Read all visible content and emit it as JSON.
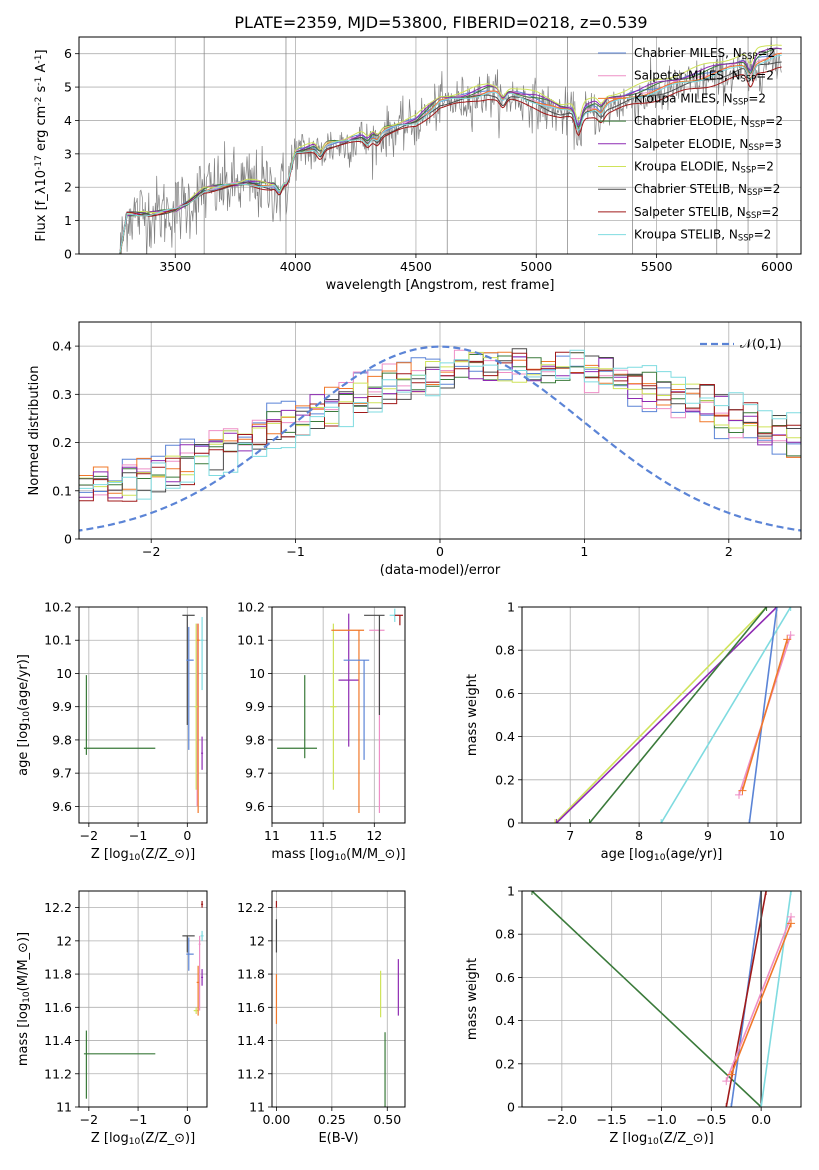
{
  "figure": {
    "title": "PLATE=2359, MJD=53800, FIBERID=0218, z=0.539"
  },
  "palette": {
    "Chabrier MILES": "#5b84d6",
    "Salpeter MILES": "#ee8fc6",
    "Kroupa MILES": "#f0782a",
    "Chabrier ELODIE": "#3a7a3a",
    "Salpeter ELODIE": "#8e2bb3",
    "Kroupa ELODIE": "#cfe35a",
    "Chabrier STELIB": "#4a4a4a",
    "Salpeter STELIB": "#a01a1a",
    "Kroupa STELIB": "#7fdbe0",
    "data": "#808080",
    "normal": "#5b84d6"
  },
  "chart_data": [
    {
      "id": "spectrum",
      "type": "line",
      "title": "PLATE=2359, MJD=53800, FIBERID=0218, z=0.539",
      "xlabel": "wavelength [Angstrom, rest frame]",
      "ylabel": "Flux [f$_\\lambda$10$^{-17}$ erg cm$^{-2}$ s$^{-1}$ A$^{-1}$]",
      "xlim": [
        3100,
        6100
      ],
      "ylim": [
        0,
        6.5
      ],
      "xticks": [
        3500,
        4000,
        4500,
        5000,
        5500,
        6000
      ],
      "yticks": [
        0,
        1,
        2,
        3,
        4,
        5,
        6
      ],
      "legend_position": "top-right",
      "legend": [
        "Chabrier MILES, N$_{SSP}$=2",
        "Salpeter MILES, N$_{SSP}$=2",
        "Kroupa MILES, N$_{SSP}$=2",
        "Chabrier ELODIE, N$_{SSP}$=2",
        "Salpeter ELODIE, N$_{SSP}$=3",
        "Kroupa ELODIE, N$_{SSP}$=2",
        "Chabrier STELIB, N$_{SSP}$=2",
        "Salpeter STELIB, N$_{SSP}$=2",
        "Kroupa STELIB, N$_{SSP}$=2"
      ],
      "continuum": {
        "x": [
          3270,
          3300,
          3400,
          3500,
          3550,
          3620,
          3700,
          3800,
          3900,
          3960,
          4000,
          4100,
          4200,
          4300,
          4400,
          4500,
          4600,
          4700,
          4800,
          4900,
          5000,
          5100,
          5200,
          5300,
          5400,
          5500,
          5600,
          5700,
          5800,
          5900,
          6000
        ],
        "y": [
          0,
          1.2,
          1.2,
          1.3,
          1.5,
          1.9,
          2.0,
          2.1,
          2.0,
          2.3,
          3.0,
          3.2,
          3.3,
          3.5,
          3.7,
          3.9,
          4.5,
          4.6,
          4.8,
          4.7,
          4.5,
          4.2,
          4.2,
          4.4,
          4.6,
          4.8,
          5.0,
          5.2,
          5.4,
          5.6,
          5.8
        ]
      },
      "model_offsets": {
        "Chabrier MILES": 0.25,
        "Salpeter MILES": 0.2,
        "Kroupa MILES": 0.15,
        "Chabrier ELODIE": 0.3,
        "Salpeter ELODIE": 0.35,
        "Kroupa ELODIE": 0.5,
        "Chabrier STELIB": 0.0,
        "Salpeter STELIB": -0.2,
        "Kroupa STELIB": 0.1
      }
    },
    {
      "id": "residuals",
      "type": "line",
      "xlabel": "(data-model)/error",
      "ylabel": "Normed distribution",
      "xlim": [
        -2.5,
        2.5
      ],
      "ylim": [
        0,
        0.45
      ],
      "xticks": [
        -2,
        -1,
        0,
        1,
        2
      ],
      "yticks": [
        0.0,
        0.1,
        0.2,
        0.3,
        0.4
      ],
      "legend": [
        "$\\mathcal{N}(0,1)$"
      ],
      "legend_position": "top-right",
      "normal_mean": 0,
      "normal_sigma": 1,
      "hist_center": 0.55,
      "hist_width": 1.7,
      "hist_peak": 0.33
    },
    {
      "id": "age-vs-Z",
      "type": "scatter",
      "xlabel": "Z [log$_{10}$(Z/Z$_\\odot$)]",
      "ylabel": "age  [log$_{10}$(age/yr)]",
      "xlim": [
        -2.2,
        0.4
      ],
      "ylim": [
        9.55,
        10.2
      ],
      "xticks": [
        -2,
        -1,
        0
      ],
      "yticks": [
        9.6,
        9.7,
        9.8,
        9.9,
        10.0,
        10.1,
        10.2
      ],
      "series": [
        {
          "name": "Chabrier ELODIE",
          "x": -2.05,
          "xerr": [
            0.05,
            1.4
          ],
          "y": 9.775,
          "yerr": [
            0.02,
            0.22
          ]
        },
        {
          "name": "Chabrier STELIB",
          "x": 0.0,
          "xerr": [
            0.1,
            0.15
          ],
          "y": 10.175,
          "yerr": [
            0.33,
            0.0
          ]
        },
        {
          "name": "Chabrier MILES",
          "x": 0.03,
          "xerr": [
            0.05,
            0.1
          ],
          "y": 10.04,
          "yerr": [
            0.27,
            0.1
          ]
        },
        {
          "name": "Salpeter MILES",
          "x": 0.2,
          "xerr": [
            0.03,
            0.03
          ],
          "y": 10.1,
          "yerr": [
            0.5,
            0.05
          ]
        },
        {
          "name": "Kroupa MILES",
          "x": 0.22,
          "xerr": [
            0.03,
            0.03
          ],
          "y": 10.1,
          "yerr": [
            0.52,
            0.05
          ]
        },
        {
          "name": "Kroupa ELODIE",
          "x": 0.18,
          "xerr": [
            0.03,
            0.03
          ],
          "y": 9.9,
          "yerr": [
            0.25,
            0.25
          ]
        },
        {
          "name": "Salpeter ELODIE",
          "x": 0.3,
          "xerr": [
            0.02,
            0.02
          ],
          "y": 9.76,
          "yerr": [
            0.05,
            0.05
          ]
        },
        {
          "name": "Kroupa STELIB",
          "x": 0.3,
          "xerr": [
            0.03,
            0.03
          ],
          "y": 10.1,
          "yerr": [
            0.15,
            0.07
          ]
        }
      ]
    },
    {
      "id": "age-vs-mass",
      "type": "scatter",
      "xlabel": "mass [log$_{10}$(M/M$_\\odot$)]",
      "ylabel": "",
      "xlim": [
        11.0,
        12.3
      ],
      "ylim": [
        9.55,
        10.2
      ],
      "xticks": [
        11.0,
        11.5,
        12.0
      ],
      "yticks": [
        9.6,
        9.7,
        9.8,
        9.9,
        10.0,
        10.1,
        10.2
      ],
      "series": [
        {
          "name": "Chabrier ELODIE",
          "x": 11.32,
          "xerr": [
            0.27,
            0.12
          ],
          "y": 9.775,
          "yerr": [
            0.03,
            0.22
          ]
        },
        {
          "name": "Kroupa ELODIE",
          "x": 11.6,
          "xerr": [
            0.03,
            0.03
          ],
          "y": 9.9,
          "yerr": [
            0.25,
            0.25
          ]
        },
        {
          "name": "Salpeter ELODIE",
          "x": 11.75,
          "xerr": [
            0.1,
            0.1
          ],
          "y": 9.98,
          "yerr": [
            0.2,
            0.2
          ]
        },
        {
          "name": "Kroupa MILES",
          "x": 11.85,
          "xerr": [
            0.27,
            0.05
          ],
          "y": 10.13,
          "yerr": [
            0.55,
            0.0
          ]
        },
        {
          "name": "Chabrier MILES",
          "x": 11.9,
          "xerr": [
            0.2,
            0.05
          ],
          "y": 10.04,
          "yerr": [
            0.3,
            0.0
          ]
        },
        {
          "name": "Salpeter MILES",
          "x": 12.05,
          "xerr": [
            0.1,
            0.05
          ],
          "y": 10.13,
          "yerr": [
            0.55,
            0.0
          ]
        },
        {
          "name": "Chabrier STELIB",
          "x": 12.05,
          "xerr": [
            0.15,
            0.05
          ],
          "y": 10.175,
          "yerr": [
            0.3,
            0.0
          ]
        },
        {
          "name": "Kroupa STELIB",
          "x": 12.2,
          "xerr": [
            0.05,
            0.05
          ],
          "y": 10.175,
          "yerr": [
            0.02,
            0.02
          ]
        },
        {
          "name": "Salpeter STELIB",
          "x": 12.25,
          "xerr": [
            0.05,
            0.03
          ],
          "y": 10.175,
          "yerr": [
            0.03,
            0.0
          ]
        }
      ]
    },
    {
      "id": "weight-vs-age",
      "type": "line",
      "xlabel": "age  [log$_{10}$(age/yr)]",
      "ylabel": "mass weight",
      "xlim": [
        6.3,
        10.35
      ],
      "ylim": [
        0,
        1.0
      ],
      "xticks": [
        7,
        8,
        9,
        10
      ],
      "yticks": [
        0.0,
        0.2,
        0.4,
        0.6,
        0.8,
        1.0
      ],
      "series": [
        {
          "name": "Kroupa ELODIE",
          "x": [
            6.78,
            9.85
          ],
          "y": [
            0.0,
            1.0
          ]
        },
        {
          "name": "Salpeter ELODIE",
          "x": [
            6.8,
            10.0
          ],
          "y": [
            0.0,
            1.0
          ]
        },
        {
          "name": "Chabrier ELODIE",
          "x": [
            7.28,
            9.85
          ],
          "y": [
            0.0,
            1.0
          ]
        },
        {
          "name": "Kroupa STELIB",
          "x": [
            8.32,
            10.2
          ],
          "y": [
            0.0,
            1.0
          ]
        },
        {
          "name": "Chabrier MILES",
          "x": [
            9.6,
            10.0
          ],
          "y": [
            0.0,
            1.0
          ]
        },
        {
          "name": "Salpeter MILES",
          "x": [
            9.45,
            10.2
          ],
          "y": [
            0.13,
            0.87
          ]
        },
        {
          "name": "Kroupa MILES",
          "x": [
            9.5,
            10.15
          ],
          "y": [
            0.15,
            0.85
          ]
        }
      ]
    },
    {
      "id": "mass-vs-Z",
      "type": "scatter",
      "xlabel": "Z [log$_{10}$(Z/Z$_\\odot$)]",
      "ylabel": "mass [log$_{10}$(M/M$_\\odot$)]",
      "xlim": [
        -2.2,
        0.4
      ],
      "ylim": [
        11.0,
        12.3
      ],
      "xticks": [
        -2,
        -1,
        0
      ],
      "yticks": [
        11.0,
        11.2,
        11.4,
        11.6,
        11.8,
        12.0,
        12.2
      ],
      "series": [
        {
          "name": "Chabrier ELODIE",
          "x": -2.05,
          "xerr": [
            0.05,
            1.4
          ],
          "y": 11.32,
          "yerr": [
            0.27,
            0.14
          ]
        },
        {
          "name": "Chabrier STELIB",
          "x": 0.0,
          "xerr": [
            0.1,
            0.15
          ],
          "y": 12.03,
          "yerr": [
            0.1,
            0.0
          ]
        },
        {
          "name": "Chabrier MILES",
          "x": 0.03,
          "xerr": [
            0.05,
            0.1
          ],
          "y": 11.92,
          "yerr": [
            0.1,
            0.1
          ]
        },
        {
          "name": "Kroupa ELODIE",
          "x": 0.18,
          "xerr": [
            0.05,
            0.05
          ],
          "y": 11.58,
          "yerr": [
            0.02,
            0.02
          ]
        },
        {
          "name": "Kroupa MILES",
          "x": 0.22,
          "xerr": [
            0.03,
            0.03
          ],
          "y": 11.75,
          "yerr": [
            0.2,
            0.1
          ]
        },
        {
          "name": "Salpeter MILES",
          "x": 0.25,
          "xerr": [
            0.02,
            0.02
          ],
          "y": 11.98,
          "yerr": [
            0.4,
            0.05
          ]
        },
        {
          "name": "Salpeter ELODIE",
          "x": 0.3,
          "xerr": [
            0.02,
            0.02
          ],
          "y": 11.78,
          "yerr": [
            0.05,
            0.05
          ]
        },
        {
          "name": "Salpeter STELIB",
          "x": 0.3,
          "xerr": [
            0.02,
            0.02
          ],
          "y": 12.22,
          "yerr": [
            0.02,
            0.02
          ]
        },
        {
          "name": "Kroupa STELIB",
          "x": 0.3,
          "xerr": [
            0.03,
            0.03
          ],
          "y": 12.03,
          "yerr": [
            0.03,
            0.03
          ]
        }
      ]
    },
    {
      "id": "mass-vs-EBV",
      "type": "scatter",
      "xlabel": "E(B-V)",
      "ylabel": "",
      "xlim": [
        -0.02,
        0.58
      ],
      "ylim": [
        11.0,
        12.3
      ],
      "xticks": [
        0.0,
        0.25,
        0.5
      ],
      "xtick_labels": [
        "0.00",
        "0.25",
        "0.50"
      ],
      "yticks": [
        11.0,
        11.2,
        11.4,
        11.6,
        11.8,
        12.0,
        12.2
      ],
      "series": [
        {
          "name": "Salpeter STELIB",
          "x": 0.0,
          "y": 12.22,
          "yerr": [
            0.02,
            0.02
          ]
        },
        {
          "name": "Chabrier STELIB",
          "x": 0.0,
          "y": 12.03,
          "yerr": [
            0.1,
            0.1
          ]
        },
        {
          "name": "Kroupa MILES",
          "x": 0.0,
          "y": 11.7,
          "yerr": [
            0.2,
            0.1
          ]
        },
        {
          "name": "Kroupa ELODIE",
          "x": 0.47,
          "y": 11.68,
          "yerr": [
            0.14,
            0.14
          ]
        },
        {
          "name": "Chabrier ELODIE",
          "x": 0.49,
          "y": 11.2,
          "yerr": [
            0.2,
            0.25
          ]
        },
        {
          "name": "Salpeter ELODIE",
          "x": 0.55,
          "y": 11.72,
          "yerr": [
            0.17,
            0.17
          ]
        }
      ]
    },
    {
      "id": "weight-vs-Z",
      "type": "line",
      "xlabel": "Z [log$_{10}$(Z/Z$_\\odot$)]",
      "ylabel": "mass weight",
      "xlim": [
        -2.4,
        0.4
      ],
      "ylim": [
        0,
        1.0
      ],
      "xticks": [
        -2.0,
        -1.5,
        -1.0,
        -0.5,
        0.0
      ],
      "xtick_labels": [
        "−2.0",
        "−1.5",
        "−1.0",
        "−0.5",
        "0.0"
      ],
      "yticks": [
        0.0,
        0.2,
        0.4,
        0.6,
        0.8,
        1.0
      ],
      "series": [
        {
          "name": "Chabrier ELODIE",
          "x": [
            -2.3,
            0.0
          ],
          "y": [
            1.0,
            0.0
          ]
        },
        {
          "name": "Chabrier MILES",
          "x": [
            -0.3,
            0.0
          ],
          "y": [
            0.0,
            1.0
          ]
        },
        {
          "name": "Salpeter STELIB",
          "x": [
            -0.35,
            0.05
          ],
          "y": [
            0.0,
            1.0
          ]
        },
        {
          "name": "Chabrier STELIB",
          "x": [
            0.0,
            0.0
          ],
          "y": [
            0.0,
            1.0
          ]
        },
        {
          "name": "Kroupa STELIB",
          "x": [
            0.0,
            0.3
          ],
          "y": [
            0.0,
            1.0
          ]
        },
        {
          "name": "Salpeter MILES",
          "x": [
            -0.35,
            0.3
          ],
          "y": [
            0.12,
            0.88
          ]
        },
        {
          "name": "Kroupa MILES",
          "x": [
            -0.3,
            0.3
          ],
          "y": [
            0.15,
            0.85
          ]
        }
      ]
    }
  ]
}
